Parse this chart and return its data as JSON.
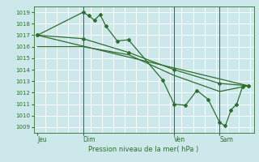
{
  "title": "Pression niveau de la mer( hPa )",
  "bg_color": "#cce8ea",
  "grid_color": "#ffffff",
  "line_color": "#2d6e2d",
  "ylim": [
    1008.5,
    1019.5
  ],
  "yticks": [
    1009,
    1010,
    1011,
    1012,
    1013,
    1014,
    1015,
    1016,
    1017,
    1018,
    1019
  ],
  "xtick_labels": [
    "Jeu",
    "Dim",
    "Ven",
    "Sam"
  ],
  "xtick_positions": [
    0,
    24,
    72,
    96
  ],
  "xlim": [
    -2,
    114
  ],
  "vlines_x": [
    24,
    72,
    96
  ],
  "series1_x": [
    0,
    24,
    27,
    30,
    33,
    36,
    42,
    48,
    66,
    72,
    78,
    84,
    90,
    96,
    99,
    102,
    105,
    108,
    111
  ],
  "series1_y": [
    1017.0,
    1019.0,
    1018.7,
    1018.3,
    1018.8,
    1017.8,
    1016.5,
    1016.6,
    1013.1,
    1011.0,
    1010.9,
    1012.2,
    1011.4,
    1009.4,
    1009.1,
    1010.5,
    1011.0,
    1012.5,
    1012.6
  ],
  "series2_x": [
    0,
    24,
    48,
    72,
    96,
    111
  ],
  "series2_y": [
    1017.0,
    1016.7,
    1015.5,
    1014.0,
    1012.8,
    1012.6
  ],
  "series3_x": [
    0,
    24,
    48,
    72,
    96,
    111
  ],
  "series3_y": [
    1016.0,
    1016.0,
    1015.3,
    1013.5,
    1012.1,
    1012.6
  ],
  "series4_x": [
    0,
    111
  ],
  "series4_y": [
    1017.0,
    1012.6
  ]
}
